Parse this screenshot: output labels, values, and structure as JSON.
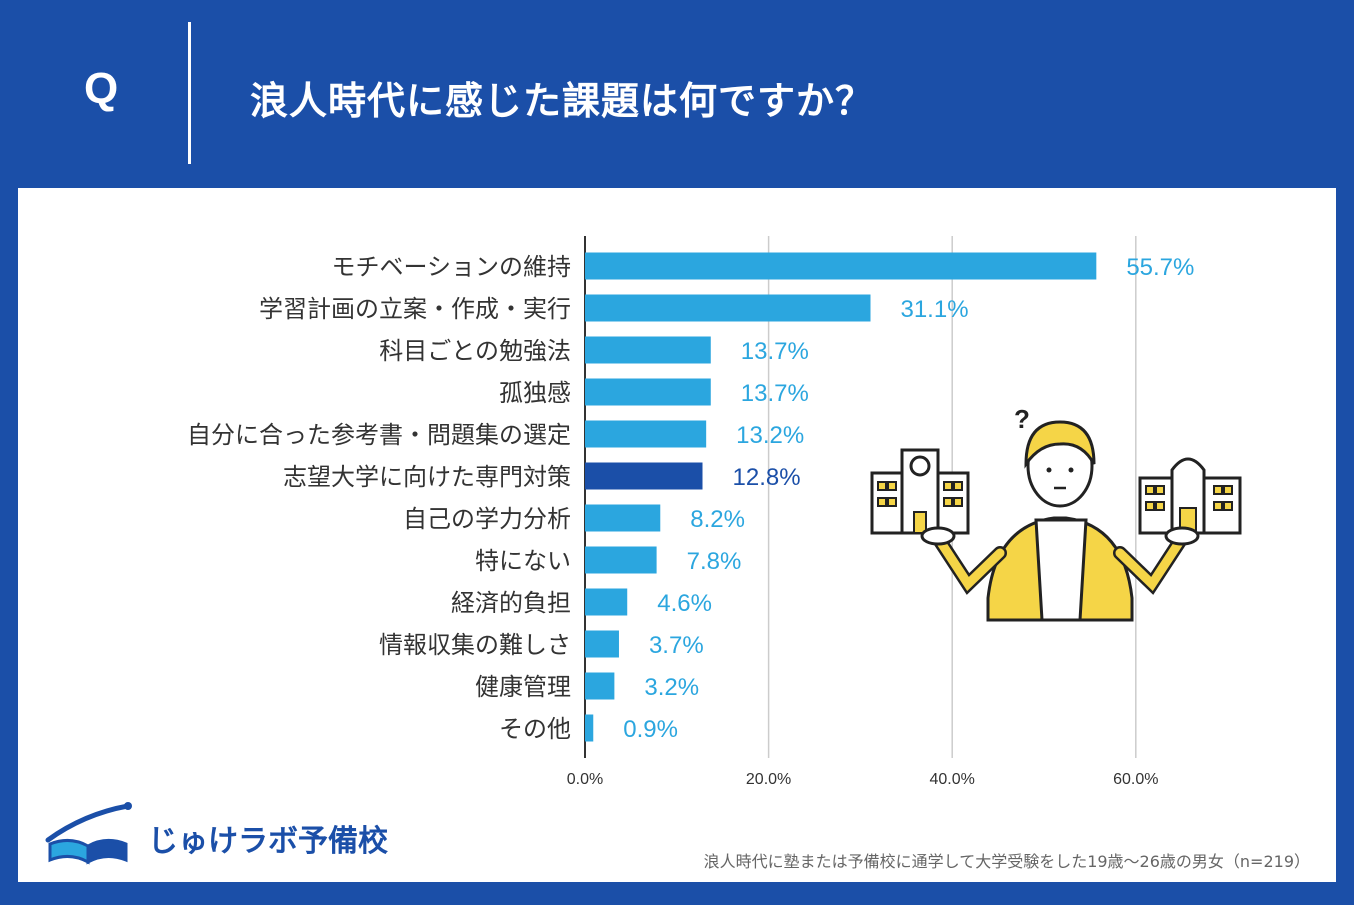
{
  "header": {
    "q_letter": "Q",
    "title": "浪人時代に感じた課題は何ですか？"
  },
  "colors": {
    "background": "#1b4fa8",
    "bar": "#2ba6df",
    "bar_highlight": "#1b4fa8",
    "label": "#2ba6df",
    "label_highlight": "#1b4fa8",
    "grid": "#cccccc"
  },
  "chart_data": {
    "type": "bar",
    "orientation": "horizontal",
    "title": "浪人時代に感じた課題は何ですか？",
    "categories": [
      "モチベーションの維持",
      "学習計画の立案・作成・実行",
      "科目ごとの勉強法",
      "孤独感",
      "自分に合った参考書・問題集の選定",
      "志望大学に向けた専門対策",
      "自己の学力分析",
      "特にない",
      "経済的負担",
      "情報収集の難しさ",
      "健康管理",
      "その他"
    ],
    "values": [
      55.7,
      31.1,
      13.7,
      13.7,
      13.2,
      12.8,
      8.2,
      7.8,
      4.6,
      3.7,
      3.2,
      0.9
    ],
    "value_labels": [
      "55.7%",
      "31.1%",
      "13.7%",
      "13.7%",
      "13.2%",
      "12.8%",
      "8.2%",
      "7.8%",
      "4.6%",
      "3.7%",
      "3.2%",
      "0.9%"
    ],
    "highlight_index": 5,
    "xlim": [
      0,
      60
    ],
    "xticks": [
      0,
      20,
      40,
      60
    ],
    "xtick_labels": [
      "0.0%",
      "20.0%",
      "40.0%",
      "60.0%"
    ],
    "grid": true,
    "xlabel": "",
    "ylabel": ""
  },
  "logo": {
    "text": "じゅけラボ予備校"
  },
  "footnote": "浪人時代に塾または予備校に通学して大学受験をした19歳〜26歳の男女（n=219）"
}
